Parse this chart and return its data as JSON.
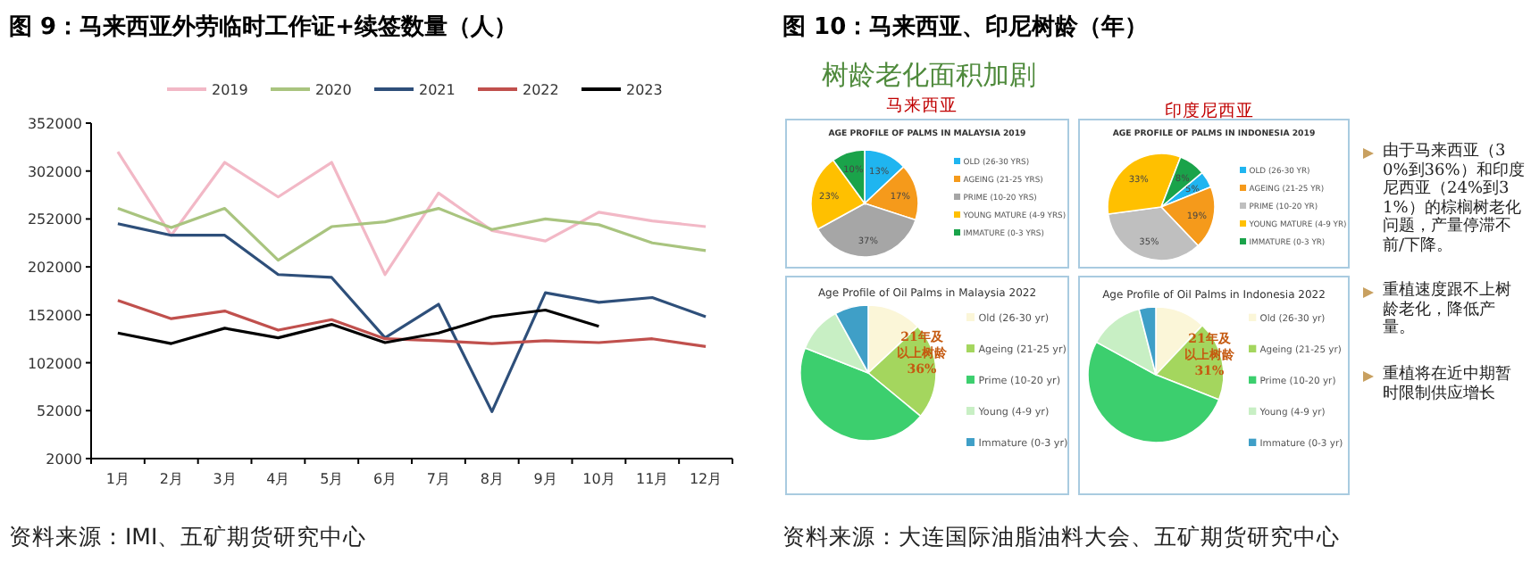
{
  "chart_data": [
    {
      "type": "line",
      "title": "图 9：马来西亚外劳临时工作证+续签数量（人）",
      "categories": [
        "1月",
        "2月",
        "3月",
        "4月",
        "5月",
        "6月",
        "7月",
        "8月",
        "9月",
        "10月",
        "11月",
        "12月"
      ],
      "series": [
        {
          "name": "2019",
          "color": "#f2b8c6",
          "values": [
            322000,
            235000,
            311000,
            275000,
            311000,
            194000,
            279000,
            240000,
            229000,
            259000,
            250000,
            244000
          ]
        },
        {
          "name": "2020",
          "color": "#a9c47f",
          "values": [
            263000,
            243000,
            263000,
            209000,
            244000,
            249000,
            263000,
            241000,
            252000,
            246000,
            227000,
            219000
          ]
        },
        {
          "name": "2021",
          "color": "#2e4f7a",
          "values": [
            247000,
            235000,
            235000,
            194000,
            191000,
            128000,
            163000,
            51000,
            175000,
            165000,
            170000,
            150000
          ]
        },
        {
          "name": "2022",
          "color": "#c0504d",
          "values": [
            167000,
            148000,
            156000,
            136000,
            147000,
            127000,
            125000,
            122000,
            125000,
            123000,
            127000,
            119000
          ]
        },
        {
          "name": "2023",
          "color": "#000000",
          "values": [
            133000,
            122000,
            138000,
            128000,
            142000,
            123000,
            133000,
            150000,
            157000,
            140000,
            null,
            null
          ]
        }
      ],
      "ylim": [
        2000,
        352000
      ],
      "yticks": [
        2000,
        52000,
        102000,
        152000,
        202000,
        252000,
        302000,
        352000
      ],
      "legend": "top",
      "annotations": [
        "资料来源：IMI、五矿期货研究中心"
      ]
    },
    {
      "type": "pie",
      "title": "AGE PROFILE OF PALMS IN MALAYSIA 2019",
      "subtitle": "马来西亚",
      "categories": [
        "OLD (26-30 YRS)",
        "AGEING (21-25 YRS)",
        "PRIME (10-20 YRS)",
        "YOUNG MATURE (4-9 YRS)",
        "IMMATURE (0-3 YRS)"
      ],
      "values": [
        13,
        17,
        37,
        23,
        10
      ],
      "value_labels": [
        "13%",
        "17%",
        "37%",
        "23%",
        "10%"
      ],
      "colors": [
        "#1fb5f0",
        "#f59a1b",
        "#a6a6a6",
        "#ffc000",
        "#1aa34a"
      ],
      "legend": "right"
    },
    {
      "type": "pie",
      "title": "AGE PROFILE OF PALMS IN INDONESIA 2019",
      "subtitle": "印度尼西亚",
      "categories": [
        "OLD (26-30 YR)",
        "AGEING (21-25 YR)",
        "PRIME (10-20 YR)",
        "YOUNG MATURE (4-9 YR)",
        "IMMATURE (0-3 YR)"
      ],
      "values": [
        5,
        19,
        35,
        33,
        8
      ],
      "value_labels": [
        "5%",
        "19%",
        "35%",
        "33%",
        "8%"
      ],
      "colors": [
        "#1fb5f0",
        "#f59a1b",
        "#bfbfbf",
        "#ffc000",
        "#1aa34a"
      ],
      "legend": "right"
    },
    {
      "type": "pie",
      "title": "Age Profile of Oil Palms in Malaysia 2022",
      "categories": [
        "Old (26-30 yr)",
        "Ageing (21-25 yr)",
        "Prime (10-20 yr)",
        "Young (4-9 yr)",
        "Immature (0-3 yr)"
      ],
      "values": [
        13,
        23,
        45,
        11,
        8
      ],
      "colors": [
        "#fbf6d8",
        "#a4d65e",
        "#3ccf6e",
        "#c8efc4",
        "#3f9fc7"
      ],
      "legend": "right",
      "annotations": [
        "21年及以上树龄36%"
      ]
    },
    {
      "type": "pie",
      "title": "Age Profile of Oil Palms in Indonesia 2022",
      "categories": [
        "Old (26-30 yr)",
        "Ageing (21-25 yr)",
        "Prime (10-20 yr)",
        "Young (4-9 yr)",
        "Immature (0-3 yr)"
      ],
      "values": [
        12,
        19,
        52,
        13,
        4
      ],
      "colors": [
        "#fbf6d8",
        "#a4d65e",
        "#3ccf6e",
        "#c8efc4",
        "#3f9fc7"
      ],
      "legend": "right",
      "annotations": [
        "21年及以上树龄31%"
      ]
    },
    {
      "type": "other",
      "title": "图 10：马来西亚、印尼树龄（年）",
      "subtitle": "树龄老化面积加剧",
      "annotations": [
        "由于马来西亚（30%到36%）和印度尼西亚（24%到31%）的棕榈树老化问题，产量停滞不前/下降。",
        "重植速度跟不上树龄老化，降低产量。",
        "重植将在近中期暂时限制供应增长",
        "资料来源：大连国际油脂油料大会、五矿期货研究中心"
      ]
    }
  ]
}
